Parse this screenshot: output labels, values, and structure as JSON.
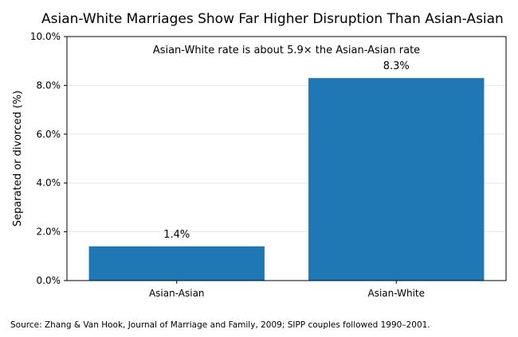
{
  "chart_data": {
    "type": "bar",
    "title": "Asian-White Marriages Show Far Higher Disruption Than Asian-Asian",
    "xlabel": "",
    "ylabel": "Separated or divorced (%)",
    "categories": [
      "Asian-Asian",
      "Asian-White"
    ],
    "values": [
      1.4,
      8.3
    ],
    "data_labels": [
      "1.4%",
      "8.3%"
    ],
    "ylim": [
      0,
      10
    ],
    "yticks": [
      {
        "value": 0,
        "label": "0.0%"
      },
      {
        "value": 2,
        "label": "2.0%"
      },
      {
        "value": 4,
        "label": "4.0%"
      },
      {
        "value": 6,
        "label": "6.0%"
      },
      {
        "value": 8,
        "label": "8.0%"
      },
      {
        "value": 10,
        "label": "10.0%"
      }
    ],
    "grid": "horizontal",
    "bar_color": "#1f77b4",
    "annotation": "Asian-White rate is about 5.9× the Asian-Asian rate",
    "source": "Source: Zhang & Van Hook, Journal of Marriage and Family, 2009; SIPP couples followed 1990–2001."
  }
}
